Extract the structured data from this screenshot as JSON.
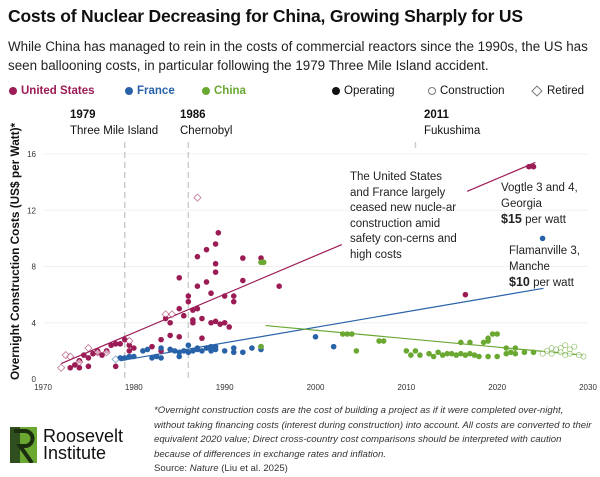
{
  "title": "Costs of Nuclear Decreasing for China, Growing Sharply for US",
  "subtitle": "While China has managed to rein in the costs of commercial reactors since the 1990s, the US has seen ballooning costs, in particular following the 1979 Three Mile Island accident.",
  "legend": {
    "countries": [
      {
        "label": "United States",
        "color": "#9b1b55"
      },
      {
        "label": "France",
        "color": "#2862a8"
      },
      {
        "label": "China",
        "color": "#6aa832"
      }
    ],
    "status": [
      {
        "label": "Operating",
        "icon": "filled-circle"
      },
      {
        "label": "Construction",
        "icon": "open-circle"
      },
      {
        "label": "Retired",
        "icon": "open-diamond"
      }
    ]
  },
  "events": [
    {
      "year": "1979",
      "label": "Three Mile Island"
    },
    {
      "year": "1986",
      "label": "Chernobyl"
    },
    {
      "year": "2011",
      "label": "Fukushima"
    }
  ],
  "annotations": {
    "us_france": "The United States and France largely ceased new nucle-ar construction amid safety con-cerns and high costs",
    "vogtle_name": "Vogtle 3 and 4, Georgia",
    "vogtle_value": "$15",
    "vogtle_unit": "per watt",
    "flamanville_name": "Flamanville 3, Manche",
    "flamanville_value": "$10",
    "flamanville_unit": "per watt"
  },
  "footnote": "*Overnight construction costs are the cost of building a project as if it were completed over-night, without taking financing costs (interest during construction) into account. All costs are converted to their equivalent 2020 value; Direct cross-country cost comparisons should be interpreted with caution because of differences in exchange rates and inflation.",
  "source_prefix": "Source: ",
  "source_name": "Nature",
  "source_suffix": " (Liu et al. 2025)",
  "logo": {
    "line1": "Roosevelt",
    "line2": "Institute"
  },
  "chart_data": {
    "type": "scatter",
    "title": "Costs of Nuclear Decreasing for China, Growing Sharply for US",
    "xlabel": "",
    "ylabel": "Overnight Construction Costs (US$ per Watt)*",
    "xlim": [
      1970,
      2030
    ],
    "ylim": [
      0,
      16.5
    ],
    "xticks": [
      1970,
      1980,
      1990,
      2000,
      2010,
      2020,
      2030
    ],
    "yticks": [
      0,
      4,
      8,
      12,
      16
    ],
    "grid": "horizontal",
    "legend_position": "top",
    "event_lines": [
      1979,
      1986,
      2011
    ],
    "series": [
      {
        "name": "United States",
        "color": "#9b1b55",
        "status": "Operating",
        "points": [
          [
            1973,
            0.8
          ],
          [
            1973.5,
            1.0
          ],
          [
            1974,
            0.8
          ],
          [
            1974,
            1.3
          ],
          [
            1974.5,
            1.7
          ],
          [
            1975,
            1.5
          ],
          [
            1975,
            0.9
          ],
          [
            1975.5,
            1.8
          ],
          [
            1976,
            1.9
          ],
          [
            1976,
            2.0
          ],
          [
            1976.5,
            1.7
          ],
          [
            1977,
            2.0
          ],
          [
            1977.5,
            2.4
          ],
          [
            1978,
            2.5
          ],
          [
            1978,
            0.9
          ],
          [
            1978.5,
            2.5
          ],
          [
            1979,
            2.8
          ],
          [
            1979.5,
            2.0
          ],
          [
            1979.5,
            2.4
          ],
          [
            1980,
            2.2
          ],
          [
            1982,
            2.3
          ],
          [
            1983,
            2.8
          ],
          [
            1983,
            2.0
          ],
          [
            1983.5,
            4.3
          ],
          [
            1984,
            4.0
          ],
          [
            1984,
            3.1
          ],
          [
            1984,
            2.1
          ],
          [
            1985,
            3.0
          ],
          [
            1985,
            5.0
          ],
          [
            1985,
            7.2
          ],
          [
            1985.5,
            4.5
          ],
          [
            1986,
            5.5
          ],
          [
            1986,
            5.9
          ],
          [
            1986.5,
            4.0
          ],
          [
            1986.5,
            4.2
          ],
          [
            1986.5,
            4.9
          ],
          [
            1987,
            5.0
          ],
          [
            1987,
            6.6
          ],
          [
            1987,
            8.7
          ],
          [
            1987.5,
            4.3
          ],
          [
            1987.5,
            2.9
          ],
          [
            1988,
            9.2
          ],
          [
            1988,
            6.9
          ],
          [
            1988.5,
            6.1
          ],
          [
            1988.5,
            4.0
          ],
          [
            1989,
            9.6
          ],
          [
            1989,
            7.6
          ],
          [
            1989,
            8.2
          ],
          [
            1989,
            4.1
          ],
          [
            1989.3,
            10.4
          ],
          [
            1989.5,
            3.9
          ],
          [
            1990,
            5.9
          ],
          [
            1990,
            4.0
          ],
          [
            1990.5,
            3.7
          ],
          [
            1991,
            5.9
          ],
          [
            1991,
            5.5
          ],
          [
            1992,
            8.6
          ],
          [
            1992,
            7.0
          ],
          [
            1994,
            8.6
          ],
          [
            1996,
            6.6
          ],
          [
            2016.5,
            6.0
          ],
          [
            2023.5,
            15.1
          ],
          [
            2024,
            15.1
          ]
        ]
      },
      {
        "name": "United States",
        "color": "#9b1b55",
        "status": "Retired",
        "points": [
          [
            1972,
            0.8
          ],
          [
            1972.5,
            1.7
          ],
          [
            1973,
            1.6
          ],
          [
            1974,
            1.2
          ],
          [
            1975,
            2.2
          ],
          [
            1976,
            1.9
          ],
          [
            1977,
            1.9
          ],
          [
            1979.5,
            2.7
          ],
          [
            1983.5,
            4.6
          ],
          [
            1984.2,
            4.6
          ],
          [
            1987,
            12.9
          ]
        ]
      },
      {
        "name": "France",
        "color": "#2862a8",
        "status": "Operating",
        "points": [
          [
            1978.5,
            1.5
          ],
          [
            1979,
            1.5
          ],
          [
            1979.5,
            1.6
          ],
          [
            1980,
            1.6
          ],
          [
            1981,
            2.0
          ],
          [
            1981.5,
            2.1
          ],
          [
            1982,
            1.5
          ],
          [
            1982.5,
            1.6
          ],
          [
            1983,
            2.2
          ],
          [
            1983,
            1.5
          ],
          [
            1984,
            2.1
          ],
          [
            1984.5,
            2.0
          ],
          [
            1985,
            1.9
          ],
          [
            1985,
            1.6
          ],
          [
            1985.5,
            2.0
          ],
          [
            1986,
            2.4
          ],
          [
            1986,
            1.9
          ],
          [
            1986.5,
            2.0
          ],
          [
            1987,
            2.1
          ],
          [
            1987,
            2.2
          ],
          [
            1987.5,
            2.0
          ],
          [
            1988,
            2.2
          ],
          [
            1988.5,
            2.3
          ],
          [
            1988.5,
            2.0
          ],
          [
            1989,
            2.3
          ],
          [
            1989,
            2.1
          ],
          [
            1990,
            2.0
          ],
          [
            1991,
            2.2
          ],
          [
            1991,
            1.9
          ],
          [
            1992,
            1.9
          ],
          [
            1993,
            2.2
          ],
          [
            1994,
            2.1
          ],
          [
            1994,
            2.3
          ],
          [
            2000,
            3.0
          ],
          [
            2002,
            2.3
          ],
          [
            2025,
            10.0
          ]
        ]
      },
      {
        "name": "France",
        "color": "#2862a8",
        "status": "Retired",
        "points": [
          [
            1978,
            1.4
          ]
        ]
      },
      {
        "name": "China",
        "color": "#6aa832",
        "status": "Operating",
        "points": [
          [
            1994,
            8.3
          ],
          [
            1994.3,
            8.3
          ],
          [
            1994,
            2.3
          ],
          [
            2003,
            3.2
          ],
          [
            2003.5,
            3.2
          ],
          [
            2004,
            3.2
          ],
          [
            2004.5,
            2.0
          ],
          [
            2007,
            2.7
          ],
          [
            2007.5,
            2.7
          ],
          [
            2010,
            2.0
          ],
          [
            2010.5,
            1.7
          ],
          [
            2011,
            2.0
          ],
          [
            2011.5,
            1.7
          ],
          [
            2012.5,
            1.8
          ],
          [
            2013,
            1.6
          ],
          [
            2013.5,
            1.9
          ],
          [
            2014,
            1.7
          ],
          [
            2014.5,
            1.8
          ],
          [
            2015,
            1.8
          ],
          [
            2015.5,
            1.7
          ],
          [
            2016,
            1.8
          ],
          [
            2016,
            2.6
          ],
          [
            2016.5,
            1.7
          ],
          [
            2017,
            1.8
          ],
          [
            2017,
            2.6
          ],
          [
            2017.5,
            1.7
          ],
          [
            2018,
            1.6
          ],
          [
            2018.5,
            2.6
          ],
          [
            2019,
            2.9
          ],
          [
            2019,
            2.7
          ],
          [
            2019,
            1.6
          ],
          [
            2019.5,
            3.2
          ],
          [
            2020,
            3.2
          ],
          [
            2020,
            1.6
          ],
          [
            2021,
            1.8
          ],
          [
            2021,
            2.2
          ],
          [
            2021.5,
            1.9
          ],
          [
            2022,
            2.2
          ],
          [
            2022,
            1.8
          ],
          [
            2023,
            1.9
          ],
          [
            2024,
            1.9
          ]
        ]
      },
      {
        "name": "China",
        "color": "#6aa832",
        "status": "Construction",
        "points": [
          [
            2025,
            1.8
          ],
          [
            2025.5,
            2.0
          ],
          [
            2026,
            1.8
          ],
          [
            2026,
            2.2
          ],
          [
            2026.5,
            2.1
          ],
          [
            2027,
            2.2
          ],
          [
            2027,
            1.9
          ],
          [
            2027.5,
            2.4
          ],
          [
            2027.5,
            1.7
          ],
          [
            2028,
            2.1
          ],
          [
            2028,
            1.8
          ],
          [
            2028.5,
            2.3
          ],
          [
            2029,
            1.7
          ],
          [
            2029.5,
            1.6
          ]
        ]
      }
    ],
    "trend_lines": [
      {
        "name": "United States",
        "color": "#9b1b55",
        "from": [
          1972,
          1.1
        ],
        "to": [
          2024.2,
          15.4
        ]
      },
      {
        "name": "France",
        "color": "#2862a8",
        "from": [
          1978.5,
          1.3
        ],
        "to": [
          2025.1,
          6.45
        ]
      },
      {
        "name": "China",
        "color": "#6aa832",
        "from": [
          1994.5,
          3.8
        ],
        "to": [
          2029.5,
          1.7
        ]
      }
    ]
  }
}
